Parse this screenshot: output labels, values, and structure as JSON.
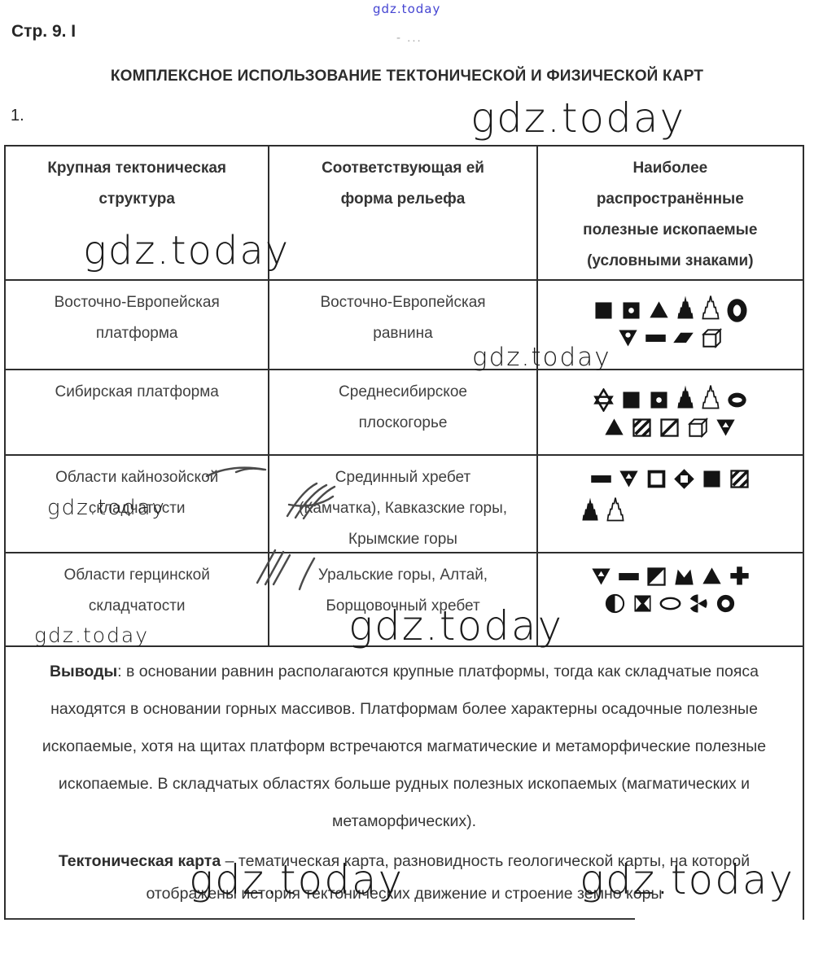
{
  "page": {
    "page_label": "Стр. 9. І",
    "faint_marks": "- ...",
    "title": "КОМПЛЕКСНОЕ ИСПОЛЬЗОВАНИЕ ТЕКТОНИЧЕСКОЙ И ФИЗИЧЕСКОЙ КАРТ",
    "item_number": "1."
  },
  "watermark": {
    "text": "gdz.today"
  },
  "colors": {
    "watermark_blue": "#4545d2",
    "ink": "#1b1b1b",
    "table_border": "#2e2e2e",
    "pen_scribble": "#4a4a4a"
  },
  "table": {
    "headers": {
      "structure": "Крупная тектоническая\nструктура",
      "relief": "Соответствующая ей\nформа рельефа",
      "minerals": "Наиболее\nраспространённые\nполезные ископаемые\n(условными знаками)"
    },
    "rows": [
      {
        "structure": "Восточно-Европейская\nплатформа",
        "relief": "Восточно-Европейская\nравнина",
        "symbols": [
          [
            "square-filled",
            "square-dot",
            "triangle-filled",
            "derrick-filled",
            "derrick-outline",
            "ring-oval"
          ],
          [
            "triangle-down-dot",
            "bar-filled",
            "parallelogram",
            "cube"
          ]
        ]
      },
      {
        "structure": "Сибирская платформа",
        "relief": "Среднесибирское\nплоскогорье",
        "symbols": [
          [
            "star6-outline",
            "square-filled",
            "square-dot",
            "derrick-filled",
            "derrick-outline",
            "ellipse-slot"
          ],
          [
            "triangle-filled",
            "square-hatched",
            "square-diagonal",
            "cube",
            "triangle-down-inner"
          ]
        ]
      },
      {
        "structure": "Области кайнозойской\nскладчатости",
        "relief": "Срединный хребет\n(Камчатка), Кавказские горы,\nКрымские горы",
        "symbols": [
          [
            "bar-filled",
            "triangle-down-inner",
            "square-outline",
            "diamond-inner",
            "square-filled",
            "square-hatched"
          ],
          [
            "derrick-filled",
            "derrick-outline"
          ]
        ]
      },
      {
        "structure": "Области герцинской\nскладчатости",
        "relief": "Уральские горы, Алтай,\nБорщовочный хребет",
        "symbols": [
          [
            "triangle-down-inner",
            "bar-filled",
            "square-diag-half",
            "crown-m",
            "triangle-filled",
            "cross-plus"
          ],
          [
            "circle-half",
            "square-bowtie",
            "ellipse-outline",
            "circle-sectors",
            "ring-small"
          ]
        ]
      }
    ]
  },
  "conclusions": {
    "label": "Выводы",
    "text": ": в основании равнин располагаются крупные платформы, тогда как складчатые пояса находятся в основании горных массивов. Платформам более характерны осадочные полезные ископаемые, хотя на щитах платформ встречаются магматические и метаморфические полезные ископаемые. В складчатых областях больше рудных полезных ископаемых (магматических и метаморфических)."
  },
  "definition": {
    "label": "Тектоническая карта",
    "text": " – тематическая карта, разновидность геологической карты, на которой отображены история тектонических движение и строение земно коры"
  }
}
